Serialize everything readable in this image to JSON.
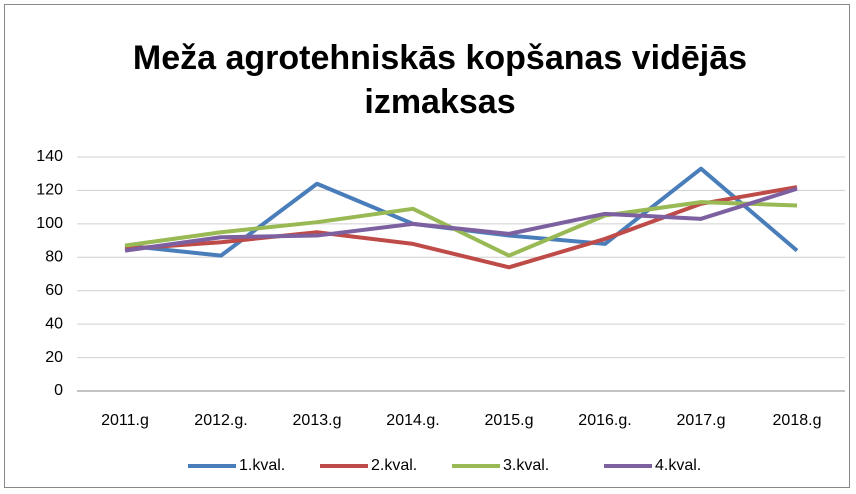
{
  "chart_data": {
    "type": "line",
    "title": "Meža agrotehniskās kopšanas vidējās izmaksas",
    "categories": [
      "2011.g",
      "2012.g.",
      "2013.g",
      "2014.g.",
      "2015.g",
      "2016.g.",
      "2017.g",
      "2018.g"
    ],
    "series": [
      {
        "name": "1.kval.",
        "color": "#4a7ebb",
        "values": [
          87,
          81,
          124,
          100,
          93,
          88,
          133,
          84
        ]
      },
      {
        "name": "2.kval.",
        "color": "#be4b48",
        "values": [
          85,
          89,
          95,
          88,
          74,
          91,
          112,
          122
        ]
      },
      {
        "name": "3.kval.",
        "color": "#98b954",
        "values": [
          87,
          95,
          101,
          109,
          81,
          105,
          113,
          111
        ]
      },
      {
        "name": "4.kval.",
        "color": "#7d60a0",
        "values": [
          84,
          92,
          93,
          100,
          94,
          106,
          103,
          121
        ]
      }
    ],
    "ylim": [
      0,
      140
    ],
    "yticks": [
      0,
      20,
      40,
      60,
      80,
      100,
      120,
      140
    ],
    "grid": true,
    "legend": "bottom"
  }
}
